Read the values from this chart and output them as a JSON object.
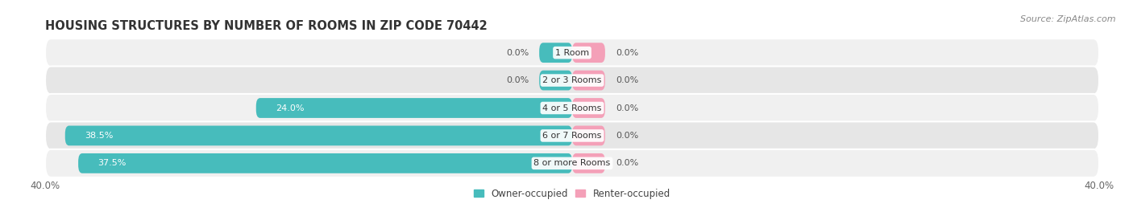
{
  "title": "HOUSING STRUCTURES BY NUMBER OF ROOMS IN ZIP CODE 70442",
  "source": "Source: ZipAtlas.com",
  "categories": [
    "1 Room",
    "2 or 3 Rooms",
    "4 or 5 Rooms",
    "6 or 7 Rooms",
    "8 or more Rooms"
  ],
  "owner_values": [
    0.0,
    0.0,
    24.0,
    38.5,
    37.5
  ],
  "renter_values": [
    0.0,
    0.0,
    0.0,
    0.0,
    0.0
  ],
  "owner_color": "#47bcbc",
  "renter_color": "#f4a0b8",
  "row_bg_color_light": "#f0f0f0",
  "row_bg_color_dark": "#e6e6e6",
  "x_min": -40.0,
  "x_max": 40.0,
  "bar_height": 0.72,
  "title_fontsize": 10.5,
  "label_fontsize": 8.0,
  "tick_fontsize": 8.5,
  "source_fontsize": 8.0,
  "legend_fontsize": 8.5,
  "background_color": "#ffffff",
  "owner_label": "Owner-occupied",
  "renter_label": "Renter-occupied",
  "stub_size": 2.5
}
